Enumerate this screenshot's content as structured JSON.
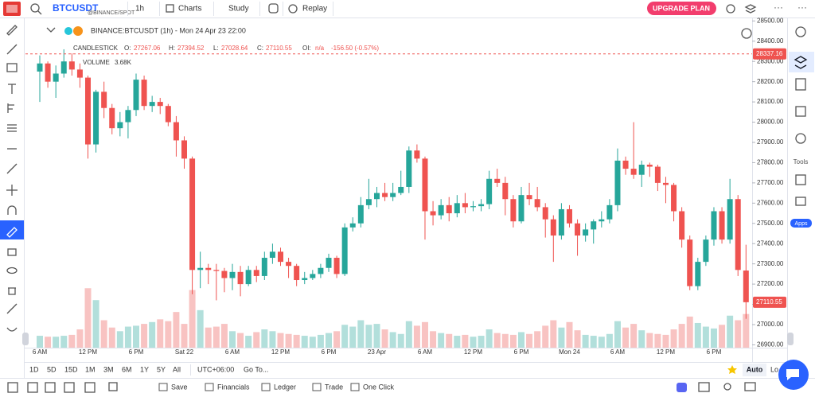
{
  "ui": {
    "symbol": "BTCUSDT",
    "exchange": "@BINANCE/SPOT",
    "interval": "1h",
    "charts": "Charts",
    "study": "Study",
    "replay": "Replay",
    "upgrade": "UPGRADE PLAN",
    "legend_title": "BINANCE:BTCUSDT (1h) - Mon 24 Apr 23 22:00",
    "candlestick": "CANDLESTICK",
    "o": "O:",
    "h": "H:",
    "l": "L:",
    "c": "C:",
    "oi": "OI:",
    "oi_value": "n/a",
    "change": "-156.50  (-0.57%)",
    "volume": "VOLUME",
    "volume_value": "3.68K",
    "ranges": [
      "1D",
      "5D",
      "15D",
      "1M",
      "3M",
      "6M",
      "1Y",
      "5Y",
      "All"
    ],
    "timezone": "UTC+06:00",
    "goto": "Go To...",
    "auto": "Auto",
    "lo": "Lo",
    "tools": "Tools",
    "apps": "Apps",
    "bottom": [
      "Save",
      "Financials",
      "Ledger",
      "Trade",
      "One Click"
    ]
  },
  "chart_data": {
    "type": "candlestick",
    "categories": [
      "6 AM",
      null,
      null,
      null,
      null,
      null,
      "12 PM",
      null,
      null,
      null,
      null,
      null,
      "6 PM",
      null,
      null,
      null,
      null,
      null,
      "Sat 22",
      null,
      null,
      null,
      null,
      null,
      "6 AM",
      null,
      null,
      null,
      null,
      null,
      "12 PM",
      null,
      null,
      null,
      null,
      null,
      "6 PM",
      null,
      null,
      null,
      null,
      null,
      "23 Apr",
      null,
      null,
      null,
      null,
      null,
      "6 AM",
      null,
      null,
      null,
      null,
      null,
      "12 PM",
      null,
      null,
      null,
      null,
      null,
      "6 PM",
      null,
      null,
      null,
      null,
      null,
      "Mon 24",
      null,
      null,
      null,
      null,
      null,
      "6 AM",
      null,
      null,
      null,
      null,
      null,
      "12 PM",
      null,
      null,
      null,
      null,
      null,
      "6 PM",
      null,
      null,
      null,
      null
    ],
    "open": [
      28250,
      28290,
      28200,
      28240,
      28300,
      28260,
      28220,
      27890,
      28150,
      28070,
      27970,
      28000,
      28060,
      28210,
      28080,
      28100,
      28080,
      28000,
      27910,
      27820,
      27270,
      27280,
      27270,
      27265,
      27230,
      27260,
      27200,
      27270,
      27240,
      27330,
      27360,
      27310,
      27290,
      27220,
      27230,
      27250,
      27280,
      27330,
      27250,
      27480,
      27500,
      27590,
      27620,
      27650,
      27630,
      27650,
      27680,
      27860,
      27820,
      27560,
      27540,
      27590,
      27550,
      27600,
      27580,
      27585,
      27595,
      27720,
      27700,
      27620,
      27510,
      27640,
      27620,
      27580,
      27520,
      27440,
      27570,
      27500,
      27440,
      27470,
      27510,
      27520,
      27590,
      27810,
      27770,
      27740,
      27790,
      27780,
      27700,
      27690,
      27560,
      27420,
      27190,
      27310,
      27420,
      27560,
      27420,
      27620,
      27267.06
    ],
    "high": [
      28330,
      28300,
      28280,
      28360,
      28340,
      28290,
      28230,
      28160,
      28200,
      28090,
      28050,
      28080,
      28240,
      28230,
      28130,
      28120,
      28090,
      28030,
      27930,
      27830,
      27360,
      27300,
      27300,
      27280,
      27300,
      27290,
      27290,
      27290,
      27360,
      27400,
      27380,
      27330,
      27300,
      27260,
      27270,
      27300,
      27350,
      27340,
      27500,
      27530,
      27630,
      27720,
      27680,
      27700,
      27700,
      27760,
      27880,
      27890,
      27830,
      27610,
      27620,
      27630,
      27640,
      27650,
      27610,
      27620,
      27760,
      27770,
      27730,
      27640,
      27680,
      27700,
      27680,
      27600,
      27540,
      27600,
      27590,
      27520,
      27500,
      27520,
      27560,
      27620,
      27870,
      27830,
      28000,
      27810,
      27800,
      27790,
      27730,
      27700,
      27580,
      27440,
      27330,
      27440,
      27580,
      27580,
      27720,
      27640,
      27394.52
    ],
    "low": [
      28100,
      28170,
      28120,
      28220,
      28230,
      28170,
      27820,
      27850,
      28020,
      27940,
      27930,
      27920,
      28030,
      28060,
      28050,
      28040,
      27980,
      27830,
      27770,
      27150,
      27180,
      27200,
      27120,
      27160,
      27170,
      27140,
      27190,
      27210,
      27220,
      27300,
      27290,
      27230,
      27190,
      27200,
      27220,
      27230,
      27260,
      27230,
      27240,
      27460,
      27480,
      27570,
      27580,
      27610,
      27610,
      27640,
      27650,
      27800,
      27420,
      27490,
      27520,
      27510,
      27530,
      27550,
      27560,
      27560,
      27570,
      27680,
      27540,
      27480,
      27500,
      27590,
      27560,
      27430,
      27310,
      27420,
      27480,
      27340,
      27410,
      27400,
      27480,
      27500,
      27560,
      27740,
      27720,
      27680,
      27730,
      27660,
      27600,
      27510,
      27380,
      27170,
      27170,
      27290,
      27390,
      27400,
      27400,
      27240,
      27028.64
    ],
    "close": [
      28290,
      28200,
      28240,
      28300,
      28260,
      28220,
      27890,
      28150,
      28070,
      27970,
      28000,
      28060,
      28210,
      28080,
      28100,
      28080,
      28000,
      27910,
      27820,
      27270,
      27280,
      27270,
      27265,
      27230,
      27260,
      27200,
      27270,
      27240,
      27330,
      27360,
      27310,
      27290,
      27220,
      27230,
      27250,
      27280,
      27330,
      27250,
      27480,
      27500,
      27590,
      27620,
      27650,
      27630,
      27650,
      27680,
      27860,
      27820,
      27560,
      27540,
      27590,
      27550,
      27600,
      27580,
      27585,
      27595,
      27720,
      27700,
      27620,
      27510,
      27640,
      27620,
      27580,
      27520,
      27440,
      27570,
      27500,
      27440,
      27470,
      27510,
      27520,
      27590,
      27810,
      27770,
      27740,
      27790,
      27780,
      27700,
      27690,
      27560,
      27420,
      27190,
      27310,
      27420,
      27560,
      27420,
      27620,
      27270,
      27110.55
    ],
    "volume": [
      1.3,
      1.2,
      1.2,
      1.3,
      1.4,
      2.0,
      6.5,
      5.2,
      3.0,
      2.2,
      1.8,
      2.3,
      2.4,
      2.6,
      2.8,
      3.1,
      2.9,
      3.9,
      2.6,
      6.3,
      4.1,
      2.2,
      2.3,
      2.6,
      1.8,
      1.6,
      1.3,
      1.7,
      2.0,
      1.8,
      1.6,
      1.5,
      1.4,
      1.3,
      1.2,
      1.4,
      1.6,
      1.8,
      2.5,
      2.3,
      3.0,
      2.5,
      2.6,
      2.0,
      1.7,
      1.5,
      2.9,
      2.4,
      2.8,
      1.8,
      1.6,
      1.5,
      1.3,
      1.4,
      1.2,
      1.3,
      2.0,
      1.6,
      1.5,
      1.4,
      1.7,
      1.5,
      1.8,
      2.4,
      3.0,
      2.2,
      2.8,
      1.9,
      1.4,
      1.3,
      1.2,
      1.5,
      2.9,
      2.2,
      2.6,
      1.9,
      1.6,
      1.5,
      1.4,
      2.0,
      2.6,
      3.4,
      2.7,
      2.3,
      2.1,
      2.5,
      3.5,
      3.0,
      3.68
    ],
    "price_line": 28337.16,
    "ylim": [
      26886,
      28517
    ],
    "yticks": [
      {
        "value": 26900,
        "label": "26900.00"
      },
      {
        "value": 27000,
        "label": "27000.00"
      },
      {
        "value": 27100,
        "label": "27100.00"
      },
      {
        "value": 27200,
        "label": "27200.00"
      },
      {
        "value": 27300,
        "label": "27300.00"
      },
      {
        "value": 27400,
        "label": "27400.00"
      },
      {
        "value": 27500,
        "label": "27500.00"
      },
      {
        "value": 27600,
        "label": "27600.00"
      },
      {
        "value": 27700,
        "label": "27700.00"
      },
      {
        "value": 27800,
        "label": "27800.00"
      },
      {
        "value": 27900,
        "label": "27900.00"
      },
      {
        "value": 28000,
        "label": "28000.00"
      },
      {
        "value": 28100,
        "label": "28100.00"
      },
      {
        "value": 28200,
        "label": "28200.00"
      },
      {
        "value": 28300,
        "label": "28300.00"
      },
      {
        "value": 28400,
        "label": "28400.00"
      },
      {
        "value": 28500,
        "label": "28500.00"
      }
    ],
    "up_color": "#26a69a",
    "down_color": "#ef5350",
    "volume_up_color": "#b2dfdb",
    "volume_down_color": "#f8c3c2"
  }
}
